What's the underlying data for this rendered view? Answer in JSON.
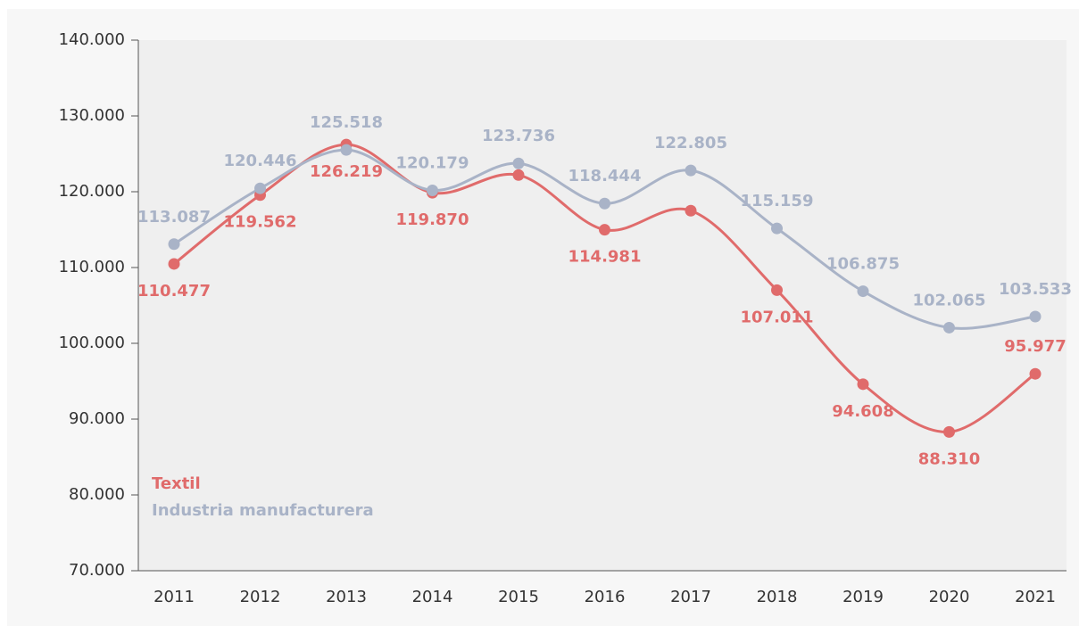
{
  "chart_data": {
    "type": "line",
    "categories": [
      "2011",
      "2012",
      "2013",
      "2014",
      "2015",
      "2016",
      "2017",
      "2018",
      "2019",
      "2020",
      "2021"
    ],
    "series": [
      {
        "name": "Textil",
        "color": "#e06b6b",
        "values": [
          110477,
          119562,
          126219,
          119870,
          122200,
          114981,
          117500,
          107011,
          94608,
          88310,
          95977
        ],
        "value_labels": [
          "110.477",
          "119.562",
          "126.219",
          "119.870",
          null,
          "114.981",
          null,
          "107.011",
          "94.608",
          "88.310",
          "95.977"
        ]
      },
      {
        "name": "Industria manufacturera",
        "color": "#a9b3c7",
        "values": [
          113087,
          120446,
          125518,
          120179,
          123736,
          118444,
          122805,
          115159,
          106875,
          102065,
          103533
        ],
        "value_labels": [
          "113.087",
          "120.446",
          "125.518",
          "120.179",
          "123.736",
          "118.444",
          "122.805",
          "115.159",
          "106.875",
          "102.065",
          "103.533"
        ]
      }
    ],
    "ylim": [
      70000,
      140000
    ],
    "yticks": [
      {
        "value": 70000,
        "label": "70.000"
      },
      {
        "value": 80000,
        "label": "80.000"
      },
      {
        "value": 90000,
        "label": "90.000"
      },
      {
        "value": 100000,
        "label": "100.000"
      },
      {
        "value": 110000,
        "label": "110.000"
      },
      {
        "value": 120000,
        "label": "120.000"
      },
      {
        "value": 130000,
        "label": "130.000"
      },
      {
        "value": 140000,
        "label": "140.000"
      }
    ],
    "legend": "lower left",
    "grid": false
  }
}
